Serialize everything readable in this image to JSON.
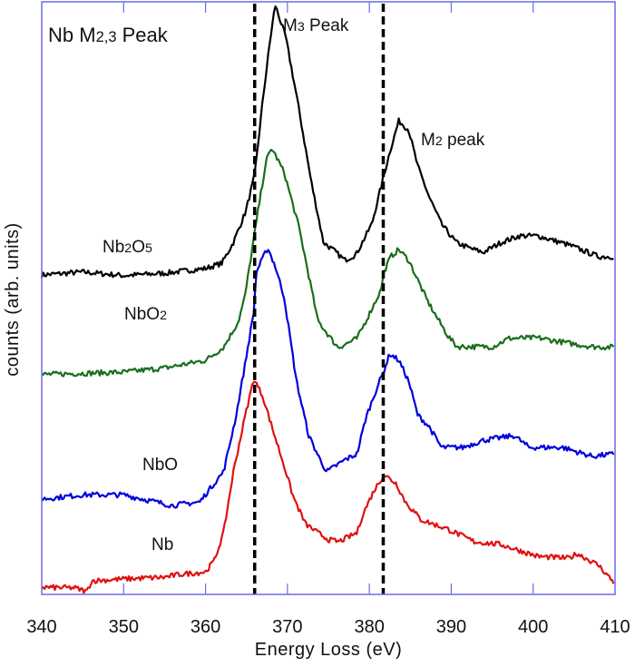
{
  "chart_data": {
    "type": "line",
    "title": [
      {
        "t": "Nb M",
        "sub": false
      },
      {
        "t": "2,3",
        "sub": true
      },
      {
        "t": " Peak",
        "sub": false
      }
    ],
    "xlabel": "Energy Loss (eV)",
    "ylabel": "counts (arb. units)",
    "xlim": [
      340,
      410
    ],
    "ylim": [
      0,
      100
    ],
    "xticks": [
      340,
      350,
      360,
      370,
      380,
      390,
      400,
      410
    ],
    "grid": false,
    "axis_color": "#6b6be6",
    "reference_lines": [
      {
        "x": 366,
        "style": "dashed",
        "color": "#000000"
      },
      {
        "x": 381.7,
        "style": "dashed",
        "color": "#000000"
      }
    ],
    "annotations": [
      {
        "id": "m3",
        "parts": [
          {
            "t": "M",
            "sub": false
          },
          {
            "t": "3",
            "sub": true
          },
          {
            "t": " Peak",
            "sub": false
          }
        ]
      },
      {
        "id": "m2",
        "parts": [
          {
            "t": "M",
            "sub": false
          },
          {
            "t": "2",
            "sub": true
          },
          {
            "t": " peak",
            "sub": false
          }
        ]
      }
    ],
    "series": [
      {
        "name": "Nb2O5",
        "label_parts": [
          {
            "t": "Nb",
            "sub": false
          },
          {
            "t": "2",
            "sub": true
          },
          {
            "t": "O",
            "sub": false
          },
          {
            "t": "5",
            "sub": true
          }
        ],
        "color": "#000000",
        "points": [
          [
            340,
            53.9
          ],
          [
            345,
            54.4
          ],
          [
            350,
            53.8
          ],
          [
            355,
            54.2
          ],
          [
            360,
            55.0
          ],
          [
            362,
            55.9
          ],
          [
            363.4,
            59.4
          ],
          [
            364.9,
            64.6
          ],
          [
            366,
            70.7
          ],
          [
            367,
            83.5
          ],
          [
            367.8,
            92.6
          ],
          [
            368.5,
            99.5
          ],
          [
            369.8,
            94
          ],
          [
            371.2,
            83.5
          ],
          [
            372.9,
            69.7
          ],
          [
            374.4,
            59.4
          ],
          [
            375.7,
            58
          ],
          [
            377,
            56.4
          ],
          [
            378.4,
            57.4
          ],
          [
            380.3,
            62.5
          ],
          [
            381.6,
            69.7
          ],
          [
            382.5,
            74.7
          ],
          [
            383.6,
            79.9
          ],
          [
            384.8,
            78.4
          ],
          [
            385.9,
            72.3
          ],
          [
            387.3,
            67.1
          ],
          [
            388.8,
            62.5
          ],
          [
            390.6,
            59.4
          ],
          [
            392.1,
            58.5
          ],
          [
            393.9,
            57.7
          ],
          [
            396.1,
            59.4
          ],
          [
            398.3,
            60.5
          ],
          [
            400.6,
            60.5
          ],
          [
            404.3,
            59.0
          ],
          [
            408,
            57.0
          ],
          [
            410,
            57.0
          ]
        ]
      },
      {
        "name": "NbO2",
        "label_parts": [
          {
            "t": "NbO",
            "sub": false
          },
          {
            "t": "2",
            "sub": true
          }
        ],
        "color": "#1a6e1a",
        "points": [
          [
            340,
            37.1
          ],
          [
            345,
            37.3
          ],
          [
            350,
            37.5
          ],
          [
            355,
            38.2
          ],
          [
            360,
            39.5
          ],
          [
            362.2,
            41.7
          ],
          [
            364,
            46
          ],
          [
            364.8,
            50.2
          ],
          [
            366.4,
            64.6
          ],
          [
            367.4,
            73.2
          ],
          [
            368.1,
            75.3
          ],
          [
            369.6,
            71.2
          ],
          [
            371.4,
            62
          ],
          [
            372.9,
            51.8
          ],
          [
            373.7,
            46.2
          ],
          [
            375.9,
            42.1
          ],
          [
            376.3,
            41.7
          ],
          [
            378.5,
            43.2
          ],
          [
            379.6,
            46.2
          ],
          [
            381.4,
            51.3
          ],
          [
            381.8,
            54.4
          ],
          [
            382.6,
            57
          ],
          [
            383.6,
            58.2
          ],
          [
            384.8,
            56.4
          ],
          [
            387,
            49.8
          ],
          [
            387.8,
            47.8
          ],
          [
            389.6,
            43.6
          ],
          [
            390.7,
            41.8
          ],
          [
            395.1,
            41.8
          ],
          [
            397,
            43.2
          ],
          [
            400.6,
            43.3
          ],
          [
            404.3,
            42.4
          ],
          [
            407.2,
            41.8
          ],
          [
            410,
            41.7
          ]
        ]
      },
      {
        "name": "NbO",
        "label_parts": [
          {
            "t": "NbO",
            "sub": false
          }
        ],
        "color": "#0000dd",
        "points": [
          [
            340,
            16.1
          ],
          [
            345,
            16.8
          ],
          [
            350,
            16.8
          ],
          [
            355.9,
            15.0
          ],
          [
            359.3,
            15.6
          ],
          [
            360.4,
            17.6
          ],
          [
            362.2,
            20.7
          ],
          [
            363.7,
            29.9
          ],
          [
            364.8,
            38.6
          ],
          [
            365.9,
            47.8
          ],
          [
            366.2,
            54.4
          ],
          [
            367.6,
            58.5
          ],
          [
            368.5,
            55.4
          ],
          [
            369.6,
            50.2
          ],
          [
            370.3,
            43.6
          ],
          [
            371.1,
            36
          ],
          [
            372.6,
            26.8
          ],
          [
            374,
            22.7
          ],
          [
            374.8,
            20.7
          ],
          [
            377,
            22.7
          ],
          [
            378.5,
            23.7
          ],
          [
            379.6,
            29.9
          ],
          [
            381.1,
            35.5
          ],
          [
            381.6,
            37.1
          ],
          [
            382.5,
            40.6
          ],
          [
            383.6,
            39.5
          ],
          [
            384.8,
            36
          ],
          [
            385.9,
            30.3
          ],
          [
            387.3,
            28.3
          ],
          [
            388.8,
            24.8
          ],
          [
            391.4,
            24.8
          ],
          [
            393.9,
            26
          ],
          [
            397.7,
            26.8
          ],
          [
            399.5,
            24.8
          ],
          [
            403.6,
            24.8
          ],
          [
            407.2,
            23.3
          ],
          [
            410,
            23.7
          ]
        ]
      },
      {
        "name": "Nb",
        "label_parts": [
          {
            "t": "Nb",
            "sub": false
          }
        ],
        "color": "#e01010",
        "points": [
          [
            340,
            1.2
          ],
          [
            344,
            1.1
          ],
          [
            345.5,
            0.5
          ],
          [
            346.1,
            2.3
          ],
          [
            350,
            2.6
          ],
          [
            355,
            2.9
          ],
          [
            357,
            3.4
          ],
          [
            360,
            3.8
          ],
          [
            361.1,
            5.8
          ],
          [
            362.2,
            10.4
          ],
          [
            363.4,
            20.7
          ],
          [
            364.8,
            29.9
          ],
          [
            365.9,
            36.4
          ],
          [
            367,
            33.4
          ],
          [
            368.1,
            28.3
          ],
          [
            369.6,
            21.7
          ],
          [
            370.7,
            16.5
          ],
          [
            372.2,
            11.9
          ],
          [
            373.7,
            10.4
          ],
          [
            375.1,
            9.2
          ],
          [
            376.3,
            8.9
          ],
          [
            378.5,
            10.4
          ],
          [
            379.2,
            13.5
          ],
          [
            380.6,
            17.6
          ],
          [
            381.8,
            20.2
          ],
          [
            383.3,
            18.7
          ],
          [
            384.4,
            15.6
          ],
          [
            386.3,
            12.6
          ],
          [
            389.6,
            11
          ],
          [
            392.8,
            8.9
          ],
          [
            396.1,
            8.4
          ],
          [
            400.6,
            6.4
          ],
          [
            404.3,
            6.1
          ],
          [
            405.4,
            6.9
          ],
          [
            408,
            4.9
          ],
          [
            410,
            1.8
          ]
        ]
      }
    ]
  }
}
